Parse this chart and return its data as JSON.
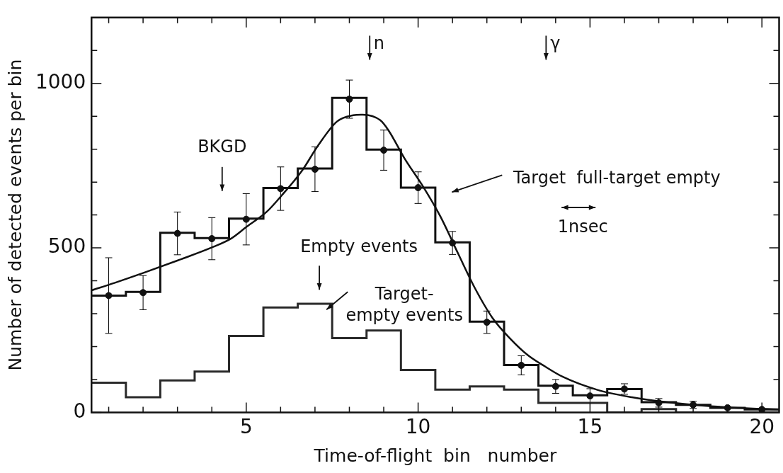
{
  "chart_data": {
    "type": "histogram",
    "xlabel": "Time-of-flight  bin   number",
    "ylabel": "Number of detected events per bin",
    "bins": [
      0.5,
      1.5,
      2.5,
      3.5,
      4.5,
      5.5,
      6.5,
      7.5,
      8.5,
      9.5,
      10.5,
      11.5,
      12.5,
      13.5,
      14.5,
      15.5,
      16.5,
      17.5,
      18.5,
      19.5,
      20.5
    ],
    "series": [
      {
        "color": "#111111",
        "values": [
          355,
          366,
          546,
          530,
          589,
          682,
          741,
          956,
          799,
          683,
          517,
          276,
          144,
          81,
          52,
          71,
          31,
          23,
          14,
          9
        ]
      },
      {
        "color": "#2a2a2a",
        "values": [
          90,
          46,
          97,
          124,
          232,
          319,
          330,
          226,
          249,
          129,
          69,
          79,
          69,
          29,
          29,
          0,
          10,
          0,
          0,
          0
        ]
      },
      {
        "type": "scatter",
        "color": "#111111",
        "marker": "circle",
        "x": [
          1,
          2,
          3,
          4,
          5,
          6,
          7,
          8,
          9,
          10,
          11,
          12,
          13,
          14,
          15,
          16,
          17,
          18,
          19,
          20
        ],
        "values": [
          355,
          364,
          544,
          528,
          587,
          680,
          739,
          952,
          797,
          683,
          515,
          274,
          143,
          79,
          50,
          71,
          29,
          23,
          14,
          9
        ],
        "errors": [
          115,
          52,
          65,
          64,
          78,
          66,
          68,
          58,
          61,
          48,
          35,
          34,
          29,
          21,
          22,
          16,
          13,
          11,
          null,
          null
        ]
      },
      {
        "type": "line",
        "color": "#111111",
        "x": [
          0.5,
          1.18,
          2.04,
          3.04,
          4.04,
          4.57,
          5.01,
          5.6,
          6.07,
          6.62,
          7.09,
          7.64,
          8.11,
          8.39,
          8.9,
          9.14,
          9.61,
          10.14,
          10.65,
          11.18,
          11.65,
          12.17,
          12.68,
          13.19,
          13.7,
          14.21,
          15.2,
          16.22,
          17.24,
          18.26,
          19.29,
          20.5
        ],
        "values": [
          371,
          394,
          425,
          463,
          503,
          529,
          564,
          610,
          664,
          734,
          811,
          884,
          903,
          905,
          888,
          857,
          771,
          687,
          595,
          479,
          378,
          286,
          224,
          174,
          139,
          108,
          69,
          46,
          31,
          21,
          14,
          9
        ]
      }
    ],
    "xlim": [
      0.5,
      20.5
    ],
    "ylim": [
      0,
      1200
    ],
    "xticks": [
      {
        "value": 1,
        "label": null
      },
      {
        "value": 2,
        "label": null
      },
      {
        "value": 3,
        "label": null
      },
      {
        "value": 4,
        "label": null
      },
      5,
      {
        "value": 6,
        "label": null
      },
      {
        "value": 7,
        "label": null
      },
      {
        "value": 8,
        "label": null
      },
      {
        "value": 9,
        "label": null
      },
      10,
      {
        "value": 11,
        "label": null
      },
      {
        "value": 12,
        "label": null
      },
      {
        "value": 13,
        "label": null
      },
      {
        "value": 14,
        "label": null
      },
      15,
      {
        "value": 16,
        "label": null
      },
      {
        "value": 17,
        "label": null
      },
      {
        "value": 18,
        "label": null
      },
      {
        "value": 19,
        "label": null
      },
      20
    ],
    "yticks": [
      0,
      {
        "value": 100,
        "label": null
      },
      {
        "value": 200,
        "label": null
      },
      {
        "value": 300,
        "label": null
      },
      {
        "value": 400,
        "label": null
      },
      500,
      {
        "value": 600,
        "label": null
      },
      {
        "value": 700,
        "label": null
      },
      {
        "value": 800,
        "label": null
      },
      {
        "value": 900,
        "label": null
      },
      1000,
      {
        "value": 1100,
        "label": null
      }
    ],
    "annotations": [
      "BKGD",
      "Empty events",
      "Target-\nempty events",
      "Target  full-target empty",
      "1nsec",
      "n",
      "γ"
    ]
  }
}
